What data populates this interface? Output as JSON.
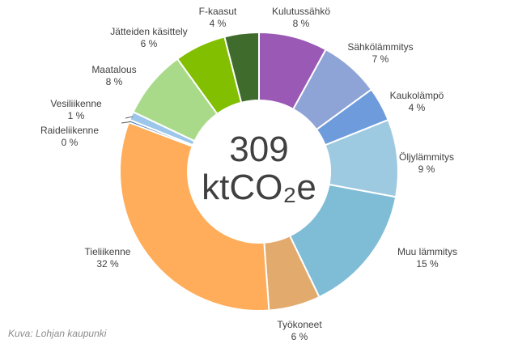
{
  "chart_data": {
    "type": "pie",
    "donut": true,
    "total": {
      "value": "309",
      "unit": "ktCO₂e"
    },
    "slices": [
      {
        "name": "Kulutussähkö",
        "value": 8,
        "label": "8 %",
        "color": "#9b59b6"
      },
      {
        "name": "Sähkölämmitys",
        "value": 7,
        "label": "7 %",
        "color": "#8ea3d6"
      },
      {
        "name": "Kaukolämpö",
        "value": 4,
        "label": "4 %",
        "color": "#6d9bdc"
      },
      {
        "name": "Öljylämmitys",
        "value": 9,
        "label": "9 %",
        "color": "#9ecae1"
      },
      {
        "name": "Muu lämmitys",
        "value": 15,
        "label": "15 %",
        "color": "#7fbcd6"
      },
      {
        "name": "Työkoneet",
        "value": 6,
        "label": "6 %",
        "color": "#e2aa6d"
      },
      {
        "name": "Tieliikenne",
        "value": 32,
        "label": "32 %",
        "color": "#ffad5a"
      },
      {
        "name": "Raideliikenne",
        "value": 0.3,
        "label": "0 %",
        "color": "#4a7db8"
      },
      {
        "name": "Vesiliikenne",
        "value": 1,
        "label": "1 %",
        "color": "#9cc7ea"
      },
      {
        "name": "Maatalous",
        "value": 8,
        "label": "8 %",
        "color": "#a9da8a"
      },
      {
        "name": "Jätteiden käsittely",
        "value": 6,
        "label": "6 %",
        "color": "#82bf00"
      },
      {
        "name": "F-kaasut",
        "value": 4,
        "label": "4 %",
        "color": "#3f6b2c"
      }
    ]
  },
  "caption": "Kuva: Lohjan kaupunki"
}
